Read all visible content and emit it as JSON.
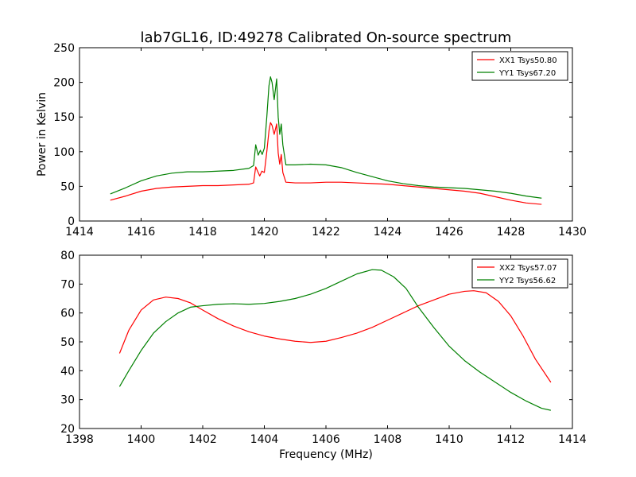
{
  "title": "lab7GL16, ID:49278 Calibrated On-source spectrum",
  "colors": {
    "xx": "#ff0000",
    "yy": "#008000",
    "axis": "#000000",
    "background": "#ffffff"
  },
  "chart_data": [
    {
      "type": "line",
      "title": "lab7GL16, ID:49278 Calibrated On-source spectrum",
      "xlabel": "",
      "ylabel": "Power in Kelvin",
      "xlim": [
        1414,
        1430
      ],
      "ylim": [
        0,
        250
      ],
      "xticks": [
        "1414",
        "1416",
        "1418",
        "1420",
        "1422",
        "1424",
        "1426",
        "1428",
        "1430"
      ],
      "yticks": [
        "0",
        "50",
        "100",
        "150",
        "200",
        "250"
      ],
      "grid": false,
      "legend": "top-right",
      "series": [
        {
          "name": "XX1 Tsys50.80",
          "color": "#ff0000",
          "x": [
            1415.0,
            1415.5,
            1416.0,
            1416.5,
            1417.0,
            1417.5,
            1418.0,
            1418.5,
            1419.0,
            1419.5,
            1419.65,
            1419.72,
            1419.78,
            1419.85,
            1419.92,
            1420.0,
            1420.08,
            1420.15,
            1420.2,
            1420.25,
            1420.32,
            1420.4,
            1420.45,
            1420.5,
            1420.55,
            1420.6,
            1420.7,
            1421.0,
            1421.5,
            1422.0,
            1422.5,
            1423.0,
            1423.5,
            1424.0,
            1424.5,
            1425.0,
            1425.5,
            1426.0,
            1426.5,
            1427.0,
            1427.5,
            1428.0,
            1428.5,
            1429.0
          ],
          "y": [
            30,
            36,
            43,
            47,
            49,
            50,
            51,
            51,
            52,
            53,
            55,
            78,
            72,
            65,
            72,
            70,
            100,
            130,
            142,
            138,
            125,
            140,
            98,
            82,
            96,
            70,
            56,
            55,
            55,
            56,
            56,
            55,
            54,
            53,
            51,
            49,
            47,
            45,
            43,
            40,
            35,
            30,
            26,
            24
          ]
        },
        {
          "name": "YY1 Tsys67.20",
          "color": "#008000",
          "x": [
            1415.0,
            1415.5,
            1416.0,
            1416.5,
            1417.0,
            1417.5,
            1418.0,
            1418.5,
            1419.0,
            1419.5,
            1419.65,
            1419.72,
            1419.8,
            1419.87,
            1419.93,
            1420.0,
            1420.08,
            1420.15,
            1420.2,
            1420.25,
            1420.32,
            1420.4,
            1420.45,
            1420.5,
            1420.55,
            1420.6,
            1420.7,
            1421.0,
            1421.5,
            1422.0,
            1422.5,
            1423.0,
            1423.5,
            1424.0,
            1424.5,
            1425.0,
            1425.5,
            1426.0,
            1426.5,
            1427.0,
            1427.5,
            1428.0,
            1428.5,
            1429.0
          ],
          "y": [
            39,
            48,
            58,
            65,
            69,
            71,
            71,
            72,
            73,
            76,
            80,
            110,
            95,
            102,
            96,
            105,
            150,
            195,
            208,
            200,
            175,
            205,
            150,
            125,
            140,
            110,
            81,
            81,
            82,
            81,
            77,
            70,
            64,
            58,
            54,
            51,
            49,
            48,
            47,
            45,
            43,
            40,
            36,
            33
          ]
        }
      ]
    },
    {
      "type": "line",
      "title": "",
      "xlabel": "Frequency (MHz)",
      "ylabel": "",
      "xlim": [
        1398,
        1414
      ],
      "ylim": [
        20,
        80
      ],
      "xticks": [
        "1398",
        "1400",
        "1402",
        "1404",
        "1406",
        "1408",
        "1410",
        "1412",
        "1414"
      ],
      "yticks": [
        "20",
        "30",
        "40",
        "50",
        "60",
        "70",
        "80"
      ],
      "grid": false,
      "legend": "top-right",
      "series": [
        {
          "name": "XX2 Tsys57.07",
          "color": "#ff0000",
          "x": [
            1399.3,
            1399.6,
            1400.0,
            1400.4,
            1400.8,
            1401.2,
            1401.6,
            1402.0,
            1402.5,
            1403.0,
            1403.5,
            1404.0,
            1404.5,
            1405.0,
            1405.5,
            1406.0,
            1406.5,
            1407.0,
            1407.5,
            1408.0,
            1408.5,
            1409.0,
            1409.5,
            1410.0,
            1410.5,
            1410.8,
            1411.2,
            1411.6,
            1412.0,
            1412.4,
            1412.8,
            1413.3
          ],
          "y": [
            46,
            54,
            61,
            64.5,
            65.5,
            65,
            63.5,
            61,
            58,
            55.5,
            53.5,
            52,
            51,
            50.2,
            49.8,
            50.2,
            51.5,
            53,
            55,
            57.5,
            60,
            62.5,
            64.5,
            66.5,
            67.5,
            67.7,
            67,
            64,
            59,
            52,
            44,
            36
          ]
        },
        {
          "name": "YY2 Tsys56.62",
          "color": "#008000",
          "x": [
            1399.3,
            1399.6,
            1400.0,
            1400.4,
            1400.8,
            1401.2,
            1401.6,
            1402.0,
            1402.5,
            1403.0,
            1403.5,
            1404.0,
            1404.5,
            1405.0,
            1405.5,
            1406.0,
            1406.5,
            1407.0,
            1407.5,
            1407.8,
            1408.2,
            1408.6,
            1409.0,
            1409.5,
            1410.0,
            1410.5,
            1411.0,
            1411.5,
            1412.0,
            1412.5,
            1413.0,
            1413.3
          ],
          "y": [
            34.5,
            40,
            47,
            53,
            57,
            60,
            62,
            62.5,
            63,
            63.2,
            63,
            63.3,
            64,
            65,
            66.5,
            68.5,
            71,
            73.5,
            75,
            74.8,
            72.5,
            68.5,
            62,
            55,
            48.5,
            43.5,
            39.5,
            36,
            32.5,
            29.5,
            27,
            26.3
          ]
        }
      ]
    }
  ]
}
